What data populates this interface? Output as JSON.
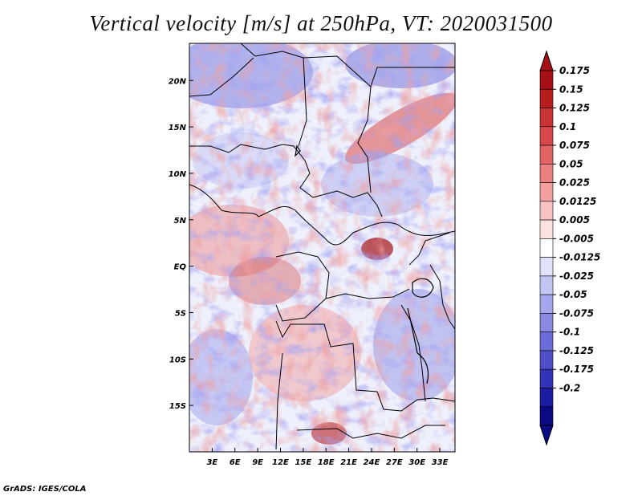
{
  "title": "Vertical velocity [m/s] at 250hPa, VT: 2020031500",
  "credit": "GrADS: IGES/COLA",
  "variable": "vertical velocity",
  "level": "250hPa",
  "valid_time": "2020031500",
  "map": {
    "lon_range": [
      0,
      35
    ],
    "lat_range": [
      -20,
      24
    ],
    "lat_ticks": [
      {
        "value": 20,
        "label": "20N"
      },
      {
        "value": 15,
        "label": "15N"
      },
      {
        "value": 10,
        "label": "10N"
      },
      {
        "value": 5,
        "label": "5N"
      },
      {
        "value": 0,
        "label": "EQ"
      },
      {
        "value": -5,
        "label": "5S"
      },
      {
        "value": -10,
        "label": "10S"
      },
      {
        "value": -15,
        "label": "15S"
      }
    ],
    "lon_ticks": [
      {
        "value": 3,
        "label": "3E"
      },
      {
        "value": 6,
        "label": "6E"
      },
      {
        "value": 9,
        "label": "9E"
      },
      {
        "value": 12,
        "label": "12E"
      },
      {
        "value": 15,
        "label": "15E"
      },
      {
        "value": 18,
        "label": "18E"
      },
      {
        "value": 21,
        "label": "21E"
      },
      {
        "value": 24,
        "label": "24E"
      },
      {
        "value": 27,
        "label": "27E"
      },
      {
        "value": 30,
        "label": "30E"
      },
      {
        "value": 33,
        "label": "33E"
      }
    ]
  },
  "colorbar": {
    "labels": [
      "0.175",
      "0.15",
      "0.125",
      "0.1",
      "0.075",
      "0.05",
      "0.025",
      "0.0125",
      "0.005",
      "-0.005",
      "-0.0125",
      "-0.025",
      "-0.05",
      "-0.075",
      "-0.1",
      "-0.125",
      "-0.175",
      "-0.2"
    ],
    "colors": [
      "#a50f15",
      "#b81d1e",
      "#c93333",
      "#d94848",
      "#e36262",
      "#eb8080",
      "#f2a0a0",
      "#f8c2c2",
      "#fde2e2",
      "#ffffff",
      "#e1e1fb",
      "#c4c4f4",
      "#a6a6ec",
      "#8a8ae2",
      "#6c6cd8",
      "#4f4fca",
      "#3333b8",
      "#1c1ca3",
      "#0a0a85"
    ],
    "top_arrow_color": "#a50f15",
    "bottom_arrow_color": "#0a0a85"
  }
}
